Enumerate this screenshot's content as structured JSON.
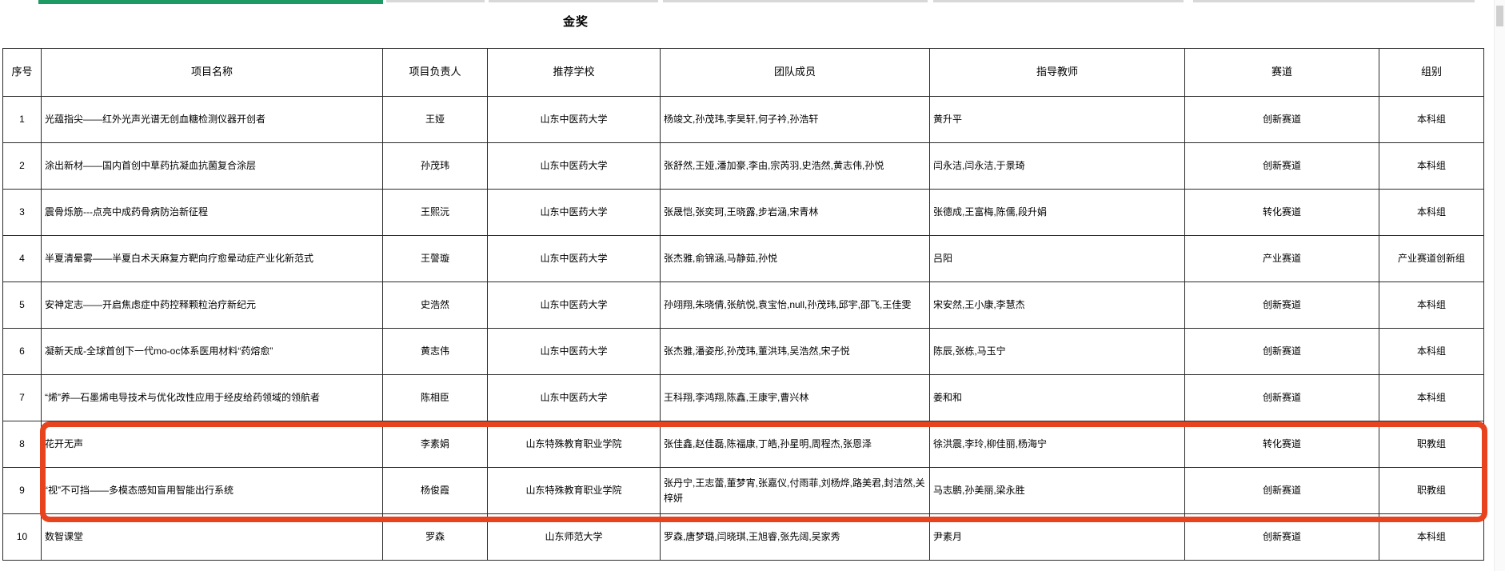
{
  "title": "金奖",
  "columns": [
    {
      "key": "index",
      "label": "序号"
    },
    {
      "key": "project-name",
      "label": "项目名称"
    },
    {
      "key": "leader",
      "label": "项目负责人"
    },
    {
      "key": "school",
      "label": "推荐学校"
    },
    {
      "key": "team-members",
      "label": "团队成员"
    },
    {
      "key": "advisors",
      "label": "指导教师"
    },
    {
      "key": "track",
      "label": "赛道"
    },
    {
      "key": "group",
      "label": "组别"
    }
  ],
  "rows": [
    [
      "1",
      "光蕴指尖——红外光声光谱无创血糖检测仪器开创者",
      "王娅",
      "山东中医药大学",
      "杨竣文,孙茂玮,李昊轩,何子衿,孙浩轩",
      "黄升平",
      "创新赛道",
      "本科组"
    ],
    [
      "2",
      "涂出新材——国内首创中草药抗凝血抗菌复合涂层",
      "孙茂玮",
      "山东中医药大学",
      "张舒然,王娅,潘加豪,李由,宗芮羽,史浩然,黄志伟,孙悦",
      "闫永洁,闫永洁,于景琦",
      "创新赛道",
      "本科组"
    ],
    [
      "3",
      "震骨烁筋---点亮中成药骨病防治新征程",
      "王熙沅",
      "山东中医药大学",
      "张晟恺,张奕珂,王晓露,步岩涵,宋青林",
      "张德成,王富梅,陈儒,段升娟",
      "转化赛道",
      "本科组"
    ],
    [
      "4",
      "半夏清晕雾——半夏白术天麻复方靶向疗愈晕动症产业化新范式",
      "王謦璇",
      "山东中医药大学",
      "张杰雅,俞锦涵,马静茹,孙悦",
      "吕阳",
      "产业赛道",
      "产业赛道创新组"
    ],
    [
      "5",
      "安神定志——开启焦虑症中药控释颗粒治疗新纪元",
      "史浩然",
      "山东中医药大学",
      "孙翊翔,朱晓倩,张航悦,袁宝怡,null,孙茂玮,邱宇,邵飞,王佳雯",
      "宋安然,王小康,李慧杰",
      "创新赛道",
      "本科组"
    ],
    [
      "6",
      "凝新天成-全球首创下一代mo-oc体系医用材料“药熔愈”",
      "黄志伟",
      "山东中医药大学",
      "张杰雅,潘姿彤,孙茂玮,董洪玮,吴浩然,宋子悦",
      "陈辰,张栋,马玉宁",
      "创新赛道",
      "本科组"
    ],
    [
      "7",
      "“烯”养—石墨烯电导技术与优化改性应用于经皮给药领域的领航者",
      "陈相臣",
      "山东中医药大学",
      "王科翔,李鸿翔,陈鑫,王康宇,曹兴林",
      "姜和和",
      "创新赛道",
      "本科组"
    ],
    [
      "8",
      "花开无声",
      "李素娟",
      "山东特殊教育职业学院",
      "张佳鑫,赵佳磊,陈福康,丁皓,孙星明,周程杰,张恩泽",
      "徐洪震,李玲,柳佳丽,杨海宁",
      "转化赛道",
      "职教组"
    ],
    [
      "9",
      "“视”不可挡——多模态感知盲用智能出行系统",
      "杨俊霞",
      "山东特殊教育职业学院",
      "张丹宁,王志蕾,董梦宵,张嘉仪,付雨菲,刘杨烨,路美君,封洁然,关梓妍",
      "马志鹏,孙美丽,梁永胜",
      "创新赛道",
      "职教组"
    ],
    [
      "10",
      "数智课堂",
      "罗森",
      "山东师范大学",
      "罗森,唐梦璐,闫晓琪,王旭睿,张先阔,吴家秀",
      "尹素月",
      "创新赛道",
      "本科组"
    ]
  ],
  "highlight": {
    "rows": [
      "8",
      "9"
    ],
    "color": "#E8431F"
  },
  "colors": {
    "green_bar": "#1E9B64",
    "gray_bar": "#D8D8D8"
  }
}
